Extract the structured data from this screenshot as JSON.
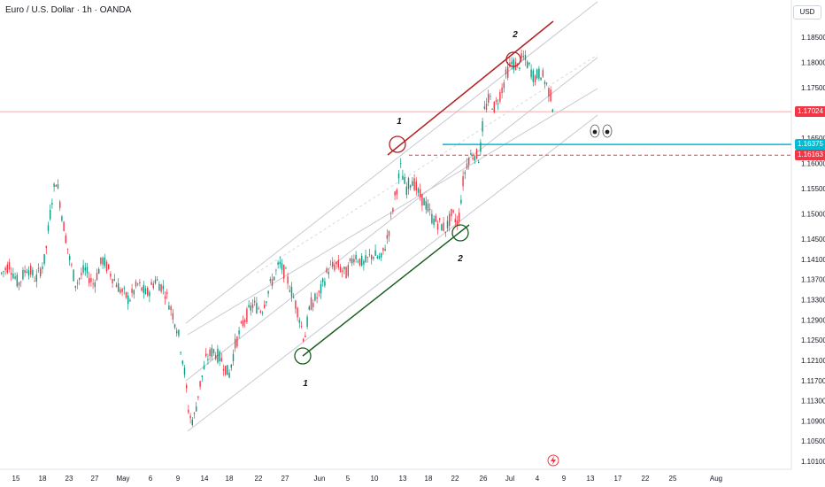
{
  "header": {
    "symbol_title": "Euro / U.S. Dollar · 1h · OANDA",
    "currency": "USD"
  },
  "colors": {
    "bull": "#089981",
    "bear": "#f23645",
    "channel": "#c7c9d1",
    "upper_line": "#b22222",
    "lower_line": "#1b5e20",
    "cyan": "#00bcd4",
    "dashed_red": "#f23645",
    "current_price_line": "#f7a9ab"
  },
  "price_tags": [
    {
      "label": "1.17024",
      "bg": "#f23645"
    },
    {
      "label": "1.16375",
      "bg": "#00bcd4"
    },
    {
      "label": "1.16163",
      "bg": "#f23645"
    }
  ],
  "chart_data": {
    "type": "candlestick",
    "x_tick_labels": [
      "15",
      "18",
      "23",
      "27",
      "May",
      "6",
      "9",
      "14",
      "18",
      "22",
      "27",
      "Jun",
      "5",
      "10",
      "13",
      "18",
      "22",
      "26",
      "Jul",
      "4",
      "9",
      "13",
      "17",
      "22",
      "25",
      "Aug"
    ],
    "y_tick_labels": [
      "1.18500",
      "1.18000",
      "1.17500",
      "1.17000",
      "1.16500",
      "1.16000",
      "1.15500",
      "1.15000",
      "1.14500",
      "1.14100",
      "1.13700",
      "1.13300",
      "1.12900",
      "1.12500",
      "1.12100",
      "1.11700",
      "1.11300",
      "1.10900",
      "1.10500",
      "1.10100"
    ],
    "ylim": [
      1.099,
      1.188
    ],
    "price_path": [
      [
        0,
        1.138
      ],
      [
        10,
        1.14
      ],
      [
        20,
        1.136
      ],
      [
        30,
        1.1395
      ],
      [
        40,
        1.137
      ],
      [
        50,
        1.141
      ],
      [
        58,
        1.153
      ],
      [
        63,
        1.157
      ],
      [
        70,
        1.149
      ],
      [
        78,
        1.141
      ],
      [
        85,
        1.136
      ],
      [
        95,
        1.139
      ],
      [
        105,
        1.136
      ],
      [
        115,
        1.141
      ],
      [
        125,
        1.138
      ],
      [
        135,
        1.135
      ],
      [
        145,
        1.133
      ],
      [
        155,
        1.136
      ],
      [
        165,
        1.134
      ],
      [
        175,
        1.137
      ],
      [
        185,
        1.135
      ],
      [
        193,
        1.131
      ],
      [
        200,
        1.127
      ],
      [
        207,
        1.12
      ],
      [
        213,
        1.11
      ],
      [
        218,
        1.109
      ],
      [
        225,
        1.116
      ],
      [
        232,
        1.121
      ],
      [
        240,
        1.123
      ],
      [
        250,
        1.121
      ],
      [
        258,
        1.118
      ],
      [
        265,
        1.124
      ],
      [
        275,
        1.129
      ],
      [
        285,
        1.132
      ],
      [
        295,
        1.131
      ],
      [
        305,
        1.136
      ],
      [
        315,
        1.14
      ],
      [
        322,
        1.138
      ],
      [
        330,
        1.134
      ],
      [
        337,
        1.13
      ],
      [
        343,
        1.125
      ],
      [
        350,
        1.132
      ],
      [
        360,
        1.134
      ],
      [
        370,
        1.139
      ],
      [
        380,
        1.14
      ],
      [
        390,
        1.138
      ],
      [
        400,
        1.142
      ],
      [
        410,
        1.14
      ],
      [
        420,
        1.142
      ],
      [
        430,
        1.141
      ],
      [
        438,
        1.146
      ],
      [
        445,
        1.153
      ],
      [
        452,
        1.159
      ],
      [
        458,
        1.155
      ],
      [
        465,
        1.157
      ],
      [
        472,
        1.154
      ],
      [
        480,
        1.152
      ],
      [
        488,
        1.149
      ],
      [
        496,
        1.148
      ],
      [
        503,
        1.147
      ],
      [
        510,
        1.15
      ],
      [
        517,
        1.148
      ],
      [
        522,
        1.156
      ],
      [
        528,
        1.161
      ],
      [
        535,
        1.162
      ],
      [
        541,
        1.161
      ],
      [
        546,
        1.17
      ],
      [
        552,
        1.173
      ],
      [
        558,
        1.171
      ],
      [
        565,
        1.174
      ],
      [
        572,
        1.178
      ],
      [
        578,
        1.18
      ],
      [
        584,
        1.179
      ],
      [
        590,
        1.181
      ],
      [
        596,
        1.1795
      ],
      [
        603,
        1.177
      ],
      [
        610,
        1.178
      ],
      [
        616,
        1.176
      ],
      [
        622,
        1.173
      ],
      [
        625,
        1.1702
      ]
    ],
    "levels": [
      {
        "name": "current",
        "value": 1.17024
      },
      {
        "name": "cyan",
        "value": 1.16375
      },
      {
        "name": "dashed",
        "value": 1.16163
      }
    ],
    "annotations": [
      "1",
      "2",
      "1",
      "2"
    ]
  }
}
